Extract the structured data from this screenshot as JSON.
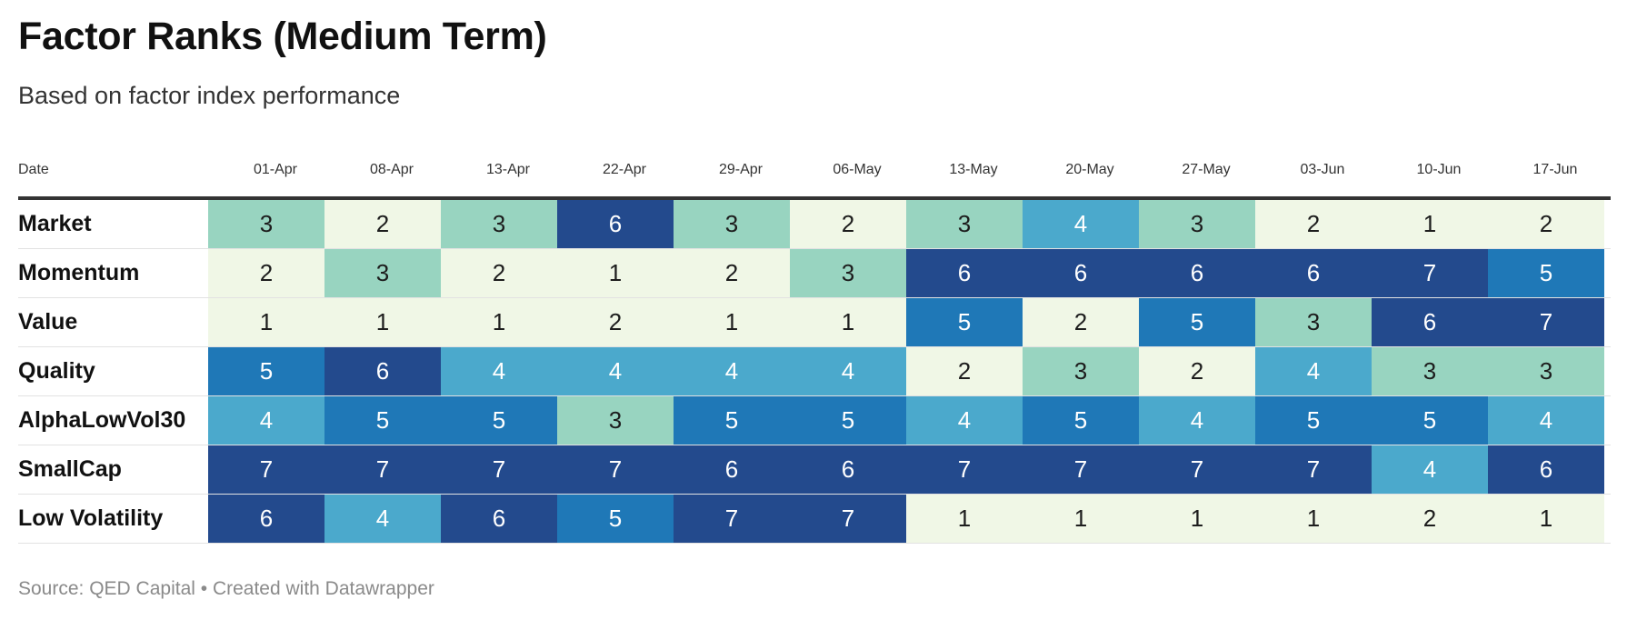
{
  "title": "Factor Ranks (Medium Term)",
  "subtitle": "Based on factor index performance",
  "footer": "Source: QED Capital • Created with Datawrapper",
  "date_header": "Date",
  "colors": {
    "1": "#f0f7e6",
    "2": "#f0f7e6",
    "3": "#98d4c0",
    "4": "#4ba9cc",
    "5": "#1f78b7",
    "6": "#234a8d",
    "7": "#234a8d",
    "light_text": "#1d1d1d",
    "dark_text": "#ffffff"
  },
  "chart_data": {
    "type": "heatmap",
    "title": "Factor Ranks (Medium Term)",
    "subtitle": "Based on factor index performance",
    "x": [
      "01-Apr",
      "08-Apr",
      "13-Apr",
      "22-Apr",
      "29-Apr",
      "06-May",
      "13-May",
      "20-May",
      "27-May",
      "03-Jun",
      "10-Jun",
      "17-Jun"
    ],
    "series": [
      {
        "name": "Market",
        "values": [
          3,
          2,
          3,
          6,
          3,
          2,
          3,
          4,
          3,
          2,
          1,
          2
        ]
      },
      {
        "name": "Momentum",
        "values": [
          2,
          3,
          2,
          1,
          2,
          3,
          6,
          6,
          6,
          6,
          7,
          5
        ]
      },
      {
        "name": "Value",
        "values": [
          1,
          1,
          1,
          2,
          1,
          1,
          5,
          2,
          5,
          3,
          6,
          7
        ]
      },
      {
        "name": "Quality",
        "values": [
          5,
          6,
          4,
          4,
          4,
          4,
          2,
          3,
          2,
          4,
          3,
          3
        ]
      },
      {
        "name": "AlphaLowVol30",
        "values": [
          4,
          5,
          5,
          3,
          5,
          5,
          4,
          5,
          4,
          5,
          5,
          4
        ]
      },
      {
        "name": "SmallCap",
        "values": [
          7,
          7,
          7,
          7,
          6,
          6,
          7,
          7,
          7,
          7,
          4,
          6
        ]
      },
      {
        "name": "Low Volatility",
        "values": [
          6,
          4,
          6,
          5,
          7,
          7,
          1,
          1,
          1,
          1,
          2,
          1
        ]
      }
    ]
  }
}
